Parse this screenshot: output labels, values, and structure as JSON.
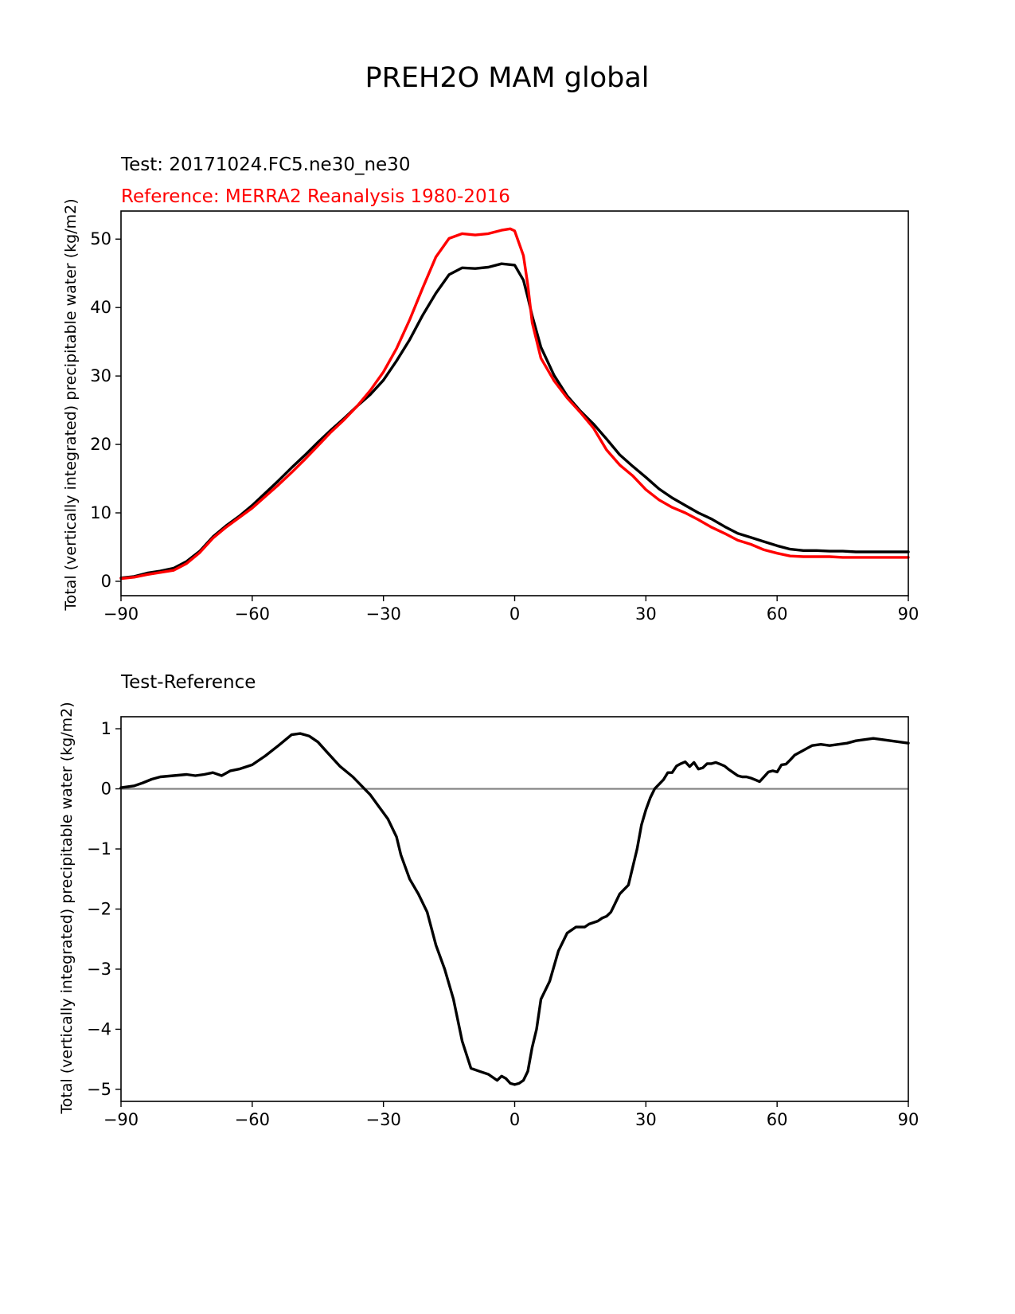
{
  "figure_title": "PREH2O MAM global",
  "colors": {
    "test": "#000000",
    "reference": "#ff0000",
    "zero_line": "#808080",
    "axes": "#000000"
  },
  "chart_data": [
    {
      "type": "line",
      "name": "profile",
      "title_left_1": "Test: 20171024.FC5.ne30_ne30",
      "title_left_2": "Reference: MERRA2 Reanalysis 1980-2016",
      "xlabel": "",
      "ylabel": "Total (vertically integrated) precipitable water (kg/m2)",
      "xlim": [
        -90,
        90
      ],
      "ylim": [
        -2.1,
        54.1
      ],
      "xticks": [
        -90,
        -60,
        -30,
        0,
        30,
        60,
        90
      ],
      "xtick_labels": [
        "−90",
        "−60",
        "−30",
        "0",
        "30",
        "60",
        "90"
      ],
      "yticks": [
        0,
        10,
        20,
        30,
        40,
        50
      ],
      "ytick_labels": [
        "0",
        "10",
        "20",
        "30",
        "40",
        "50"
      ],
      "series": [
        {
          "name": "Test",
          "color": "#000000",
          "x": [
            -90,
            -87,
            -84,
            -81,
            -78,
            -75,
            -72,
            -69,
            -66,
            -63,
            -60,
            -57,
            -54,
            -51,
            -48,
            -45,
            -42,
            -39,
            -36,
            -33,
            -30,
            -27,
            -24,
            -21,
            -18,
            -15,
            -12,
            -9,
            -6,
            -3,
            0,
            2,
            3,
            4,
            6,
            9,
            12,
            15,
            18,
            21,
            24,
            27,
            30,
            33,
            36,
            39,
            42,
            45,
            48,
            51,
            54,
            57,
            60,
            63,
            66,
            69,
            72,
            75,
            78,
            81,
            84,
            87,
            90
          ],
          "y": [
            0.5,
            0.7,
            1.2,
            1.5,
            1.9,
            2.9,
            4.4,
            6.5,
            8.1,
            9.5,
            11.1,
            12.9,
            14.7,
            16.6,
            18.4,
            20.3,
            22.1,
            23.8,
            25.6,
            27.3,
            29.4,
            32.2,
            35.3,
            38.9,
            42.1,
            44.8,
            45.8,
            45.7,
            45.9,
            46.4,
            46.2,
            44.0,
            41.5,
            38.8,
            34.2,
            30.1,
            27.1,
            24.9,
            23.0,
            20.8,
            18.5,
            16.8,
            15.2,
            13.5,
            12.2,
            11.1,
            10.0,
            9.1,
            8.0,
            7.0,
            6.4,
            5.8,
            5.2,
            4.7,
            4.5,
            4.5,
            4.4,
            4.4,
            4.3,
            4.3,
            4.3,
            4.3,
            4.3
          ]
        },
        {
          "name": "Reference",
          "color": "#ff0000",
          "x": [
            -90,
            -87,
            -84,
            -81,
            -78,
            -75,
            -72,
            -69,
            -66,
            -63,
            -60,
            -57,
            -54,
            -51,
            -48,
            -45,
            -42,
            -39,
            -36,
            -33,
            -30,
            -27,
            -24,
            -21,
            -18,
            -15,
            -12,
            -9,
            -6,
            -3,
            -1,
            0,
            2,
            3,
            4,
            6,
            9,
            12,
            15,
            18,
            21,
            24,
            27,
            30,
            33,
            36,
            39,
            42,
            45,
            48,
            51,
            54,
            57,
            60,
            63,
            66,
            69,
            72,
            75,
            78,
            81,
            84,
            87,
            90
          ],
          "y": [
            0.4,
            0.6,
            1.0,
            1.3,
            1.6,
            2.6,
            4.2,
            6.3,
            7.9,
            9.3,
            10.7,
            12.4,
            14.1,
            15.9,
            17.8,
            19.8,
            21.8,
            23.6,
            25.6,
            27.9,
            30.6,
            34.0,
            38.2,
            42.9,
            47.4,
            50.1,
            50.8,
            50.6,
            50.8,
            51.3,
            51.5,
            51.2,
            47.6,
            43.3,
            37.8,
            32.6,
            29.3,
            26.8,
            24.7,
            22.4,
            19.2,
            17.0,
            15.4,
            13.4,
            11.9,
            10.8,
            10.0,
            9.0,
            7.9,
            7.0,
            6.0,
            5.4,
            4.6,
            4.1,
            3.7,
            3.6,
            3.6,
            3.6,
            3.5,
            3.5,
            3.5,
            3.5,
            3.5,
            3.5
          ]
        }
      ]
    },
    {
      "type": "line",
      "name": "difference",
      "title_left_1": "Test-Reference",
      "xlabel": "",
      "ylabel": "Total (vertically integrated) precipitable water (kg/m2)",
      "xlim": [
        -90,
        90
      ],
      "ylim": [
        -5.2,
        1.2
      ],
      "xticks": [
        -90,
        -60,
        -30,
        0,
        30,
        60,
        90
      ],
      "xtick_labels": [
        "−90",
        "−60",
        "−30",
        "0",
        "30",
        "60",
        "90"
      ],
      "yticks": [
        1,
        0,
        -1,
        -2,
        -3,
        -4,
        -5
      ],
      "ytick_labels": [
        "1",
        "0",
        "−1",
        "−2",
        "−3",
        "−4",
        "−5"
      ],
      "zero_line": 0,
      "series": [
        {
          "name": "Test-Reference",
          "color": "#000000",
          "x": [
            -90,
            -87,
            -85,
            -83,
            -81,
            -78,
            -75,
            -73,
            -71,
            -69,
            -67,
            -65,
            -63,
            -60,
            -57,
            -54,
            -51,
            -49,
            -47,
            -45,
            -43,
            -40,
            -37,
            -35,
            -33,
            -31,
            -29,
            -27,
            -26,
            -24,
            -22,
            -20,
            -18,
            -16,
            -14,
            -12,
            -10,
            -8,
            -6,
            -4,
            -3,
            -2,
            -1,
            0,
            1,
            2,
            3,
            4,
            5,
            6,
            8,
            10,
            12,
            14,
            16,
            17,
            19,
            20,
            21,
            22,
            23,
            24,
            26,
            28,
            29,
            30,
            31,
            32,
            34,
            35,
            36,
            37,
            38,
            39,
            40,
            41,
            42,
            43,
            44,
            45,
            46,
            47,
            48,
            49,
            50,
            51,
            52,
            53,
            54,
            55,
            56,
            57,
            58,
            59,
            60,
            61,
            62,
            63,
            64,
            65,
            66,
            67,
            68,
            70,
            72,
            74,
            76,
            78,
            80,
            82,
            84,
            86,
            88,
            90
          ],
          "y": [
            0.02,
            0.05,
            0.1,
            0.16,
            0.2,
            0.22,
            0.24,
            0.22,
            0.24,
            0.27,
            0.22,
            0.3,
            0.33,
            0.4,
            0.55,
            0.72,
            0.9,
            0.92,
            0.88,
            0.78,
            0.62,
            0.38,
            0.2,
            0.05,
            -0.1,
            -0.3,
            -0.5,
            -0.8,
            -1.1,
            -1.5,
            -1.75,
            -2.05,
            -2.6,
            -3.0,
            -3.5,
            -4.2,
            -4.65,
            -4.7,
            -4.75,
            -4.85,
            -4.78,
            -4.82,
            -4.9,
            -4.92,
            -4.9,
            -4.85,
            -4.7,
            -4.3,
            -4.0,
            -3.5,
            -3.2,
            -2.7,
            -2.4,
            -2.3,
            -2.3,
            -2.25,
            -2.2,
            -2.15,
            -2.12,
            -2.05,
            -1.9,
            -1.75,
            -1.6,
            -1.0,
            -0.6,
            -0.35,
            -0.15,
            0.0,
            0.15,
            0.27,
            0.27,
            0.38,
            0.42,
            0.45,
            0.37,
            0.44,
            0.33,
            0.35,
            0.42,
            0.42,
            0.44,
            0.41,
            0.38,
            0.32,
            0.27,
            0.22,
            0.2,
            0.2,
            0.18,
            0.15,
            0.12,
            0.2,
            0.28,
            0.3,
            0.28,
            0.4,
            0.41,
            0.48,
            0.56,
            0.6,
            0.64,
            0.68,
            0.72,
            0.74,
            0.72,
            0.74,
            0.76,
            0.8,
            0.82,
            0.84,
            0.82,
            0.8,
            0.78,
            0.76
          ]
        }
      ]
    }
  ]
}
